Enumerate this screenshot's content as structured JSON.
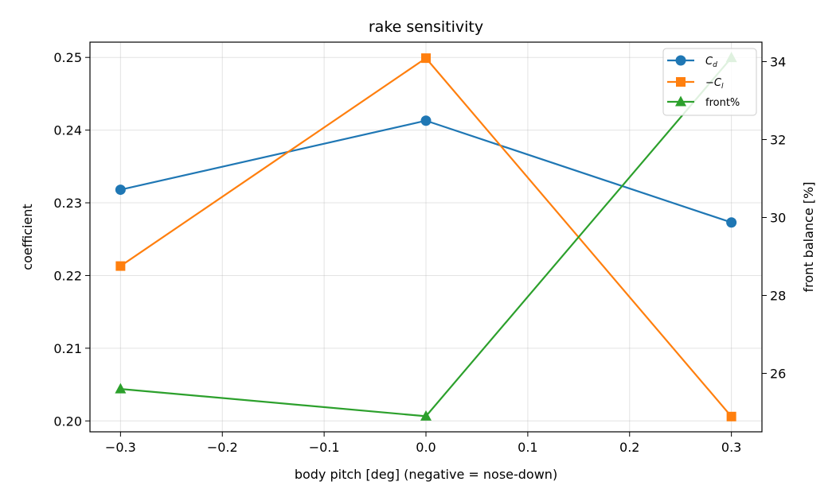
{
  "chart_data": {
    "type": "line",
    "title": "rake sensitivity",
    "xlabel": "body pitch [deg] (negative = nose-down)",
    "ylabel": "coefficient",
    "y2label": "front balance [%]",
    "x": [
      -0.3,
      0.0,
      0.3
    ],
    "xlim": [
      -0.33,
      0.33
    ],
    "ylim": [
      0.1985,
      0.2521
    ],
    "y2lim": [
      24.5,
      34.5
    ],
    "xticks": [
      -0.3,
      -0.2,
      -0.1,
      0.0,
      0.1,
      0.2,
      0.3
    ],
    "xtick_labels": [
      "−0.3",
      "−0.2",
      "−0.1",
      "0.0",
      "0.1",
      "0.2",
      "0.3"
    ],
    "yticks": [
      0.2,
      0.21,
      0.22,
      0.23,
      0.24,
      0.25
    ],
    "ytick_labels": [
      "0.20",
      "0.21",
      "0.22",
      "0.23",
      "0.24",
      "0.25"
    ],
    "y2ticks": [
      26,
      28,
      30,
      32,
      34
    ],
    "y2tick_labels": [
      "26",
      "28",
      "30",
      "32",
      "34"
    ],
    "grid": true,
    "legend_position": "top-right",
    "series": [
      {
        "name": "C_d",
        "legend_main": "C",
        "legend_sub": "d",
        "axis": "left",
        "marker": "circle",
        "color": "#1f77b4",
        "values": [
          0.2318,
          0.2413,
          0.2273
        ]
      },
      {
        "name": "−C_l",
        "legend_main": "−C",
        "legend_sub": "l",
        "axis": "left",
        "marker": "square",
        "color": "#ff7f0e",
        "values": [
          0.2213,
          0.2499,
          0.2006
        ]
      },
      {
        "name": "front%",
        "legend_main": "front%",
        "legend_sub": "",
        "axis": "right",
        "marker": "triangle",
        "color": "#2ca02c",
        "values": [
          25.6,
          24.9,
          34.1
        ]
      }
    ]
  }
}
